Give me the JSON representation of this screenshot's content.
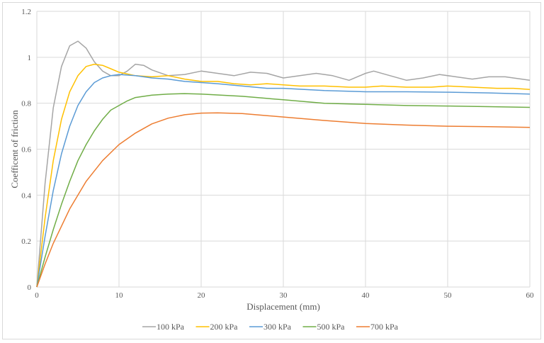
{
  "chart_data": {
    "type": "line",
    "title": "",
    "xlabel": "Displacement (mm)",
    "ylabel": "Coefficent of friction",
    "xlim": [
      0,
      60
    ],
    "ylim": [
      0,
      1.2
    ],
    "xticks": [
      0,
      10,
      20,
      30,
      40,
      50,
      60
    ],
    "yticks": [
      0,
      0.2,
      0.4,
      0.6,
      0.8,
      1,
      1.2
    ],
    "ytick_labels": [
      "0",
      "0.2",
      "0.4",
      "0.6",
      "0.8",
      "1",
      "1.2"
    ],
    "grid": true,
    "legend_position": "bottom",
    "series": [
      {
        "name": "100 kPa",
        "color": "#a5a5a5",
        "points": [
          [
            0,
            0
          ],
          [
            1,
            0.45
          ],
          [
            2,
            0.78
          ],
          [
            3,
            0.96
          ],
          [
            4,
            1.05
          ],
          [
            5,
            1.07
          ],
          [
            6,
            1.04
          ],
          [
            7,
            0.98
          ],
          [
            8,
            0.94
          ],
          [
            9,
            0.92
          ],
          [
            10,
            0.92
          ],
          [
            11,
            0.94
          ],
          [
            12,
            0.97
          ],
          [
            13,
            0.965
          ],
          [
            14,
            0.945
          ],
          [
            16,
            0.92
          ],
          [
            18,
            0.925
          ],
          [
            20,
            0.94
          ],
          [
            22,
            0.93
          ],
          [
            24,
            0.92
          ],
          [
            26,
            0.935
          ],
          [
            28,
            0.93
          ],
          [
            30,
            0.91
          ],
          [
            32,
            0.92
          ],
          [
            34,
            0.93
          ],
          [
            36,
            0.92
          ],
          [
            38,
            0.9
          ],
          [
            40,
            0.93
          ],
          [
            41,
            0.94
          ],
          [
            43,
            0.92
          ],
          [
            45,
            0.9
          ],
          [
            47,
            0.91
          ],
          [
            49,
            0.925
          ],
          [
            51,
            0.915
          ],
          [
            53,
            0.905
          ],
          [
            55,
            0.915
          ],
          [
            57,
            0.915
          ],
          [
            59,
            0.905
          ],
          [
            60,
            0.9
          ]
        ]
      },
      {
        "name": "200 kPa",
        "color": "#ffc000",
        "points": [
          [
            0,
            0
          ],
          [
            1,
            0.3
          ],
          [
            2,
            0.55
          ],
          [
            3,
            0.73
          ],
          [
            4,
            0.85
          ],
          [
            5,
            0.92
          ],
          [
            6,
            0.96
          ],
          [
            7,
            0.97
          ],
          [
            8,
            0.965
          ],
          [
            9,
            0.95
          ],
          [
            10,
            0.935
          ],
          [
            12,
            0.92
          ],
          [
            14,
            0.915
          ],
          [
            16,
            0.92
          ],
          [
            18,
            0.905
          ],
          [
            20,
            0.895
          ],
          [
            22,
            0.895
          ],
          [
            24,
            0.885
          ],
          [
            26,
            0.88
          ],
          [
            28,
            0.885
          ],
          [
            30,
            0.88
          ],
          [
            32,
            0.875
          ],
          [
            35,
            0.875
          ],
          [
            38,
            0.87
          ],
          [
            40,
            0.87
          ],
          [
            42,
            0.875
          ],
          [
            45,
            0.87
          ],
          [
            48,
            0.87
          ],
          [
            50,
            0.875
          ],
          [
            53,
            0.87
          ],
          [
            56,
            0.865
          ],
          [
            58,
            0.865
          ],
          [
            60,
            0.86
          ]
        ]
      },
      {
        "name": "300 kPa",
        "color": "#5b9bd5",
        "points": [
          [
            0,
            0
          ],
          [
            1,
            0.22
          ],
          [
            2,
            0.42
          ],
          [
            3,
            0.58
          ],
          [
            4,
            0.7
          ],
          [
            5,
            0.79
          ],
          [
            6,
            0.85
          ],
          [
            7,
            0.89
          ],
          [
            8,
            0.91
          ],
          [
            9,
            0.92
          ],
          [
            10,
            0.925
          ],
          [
            12,
            0.92
          ],
          [
            14,
            0.91
          ],
          [
            16,
            0.905
          ],
          [
            18,
            0.895
          ],
          [
            20,
            0.89
          ],
          [
            22,
            0.885
          ],
          [
            25,
            0.875
          ],
          [
            28,
            0.865
          ],
          [
            30,
            0.865
          ],
          [
            35,
            0.855
          ],
          [
            40,
            0.85
          ],
          [
            45,
            0.85
          ],
          [
            50,
            0.848
          ],
          [
            55,
            0.845
          ],
          [
            60,
            0.84
          ]
        ]
      },
      {
        "name": "500 kPa",
        "color": "#70ad47",
        "points": [
          [
            0,
            0
          ],
          [
            1,
            0.13
          ],
          [
            2,
            0.25
          ],
          [
            3,
            0.36
          ],
          [
            4,
            0.46
          ],
          [
            5,
            0.55
          ],
          [
            6,
            0.62
          ],
          [
            7,
            0.68
          ],
          [
            8,
            0.73
          ],
          [
            9,
            0.77
          ],
          [
            10,
            0.79
          ],
          [
            11,
            0.81
          ],
          [
            12,
            0.825
          ],
          [
            14,
            0.835
          ],
          [
            16,
            0.84
          ],
          [
            18,
            0.842
          ],
          [
            20,
            0.84
          ],
          [
            25,
            0.83
          ],
          [
            30,
            0.815
          ],
          [
            35,
            0.8
          ],
          [
            40,
            0.795
          ],
          [
            45,
            0.79
          ],
          [
            50,
            0.788
          ],
          [
            55,
            0.785
          ],
          [
            60,
            0.782
          ]
        ]
      },
      {
        "name": "700 kPa",
        "color": "#ed7d31",
        "points": [
          [
            0,
            0
          ],
          [
            1,
            0.1
          ],
          [
            2,
            0.19
          ],
          [
            4,
            0.34
          ],
          [
            6,
            0.46
          ],
          [
            8,
            0.55
          ],
          [
            10,
            0.62
          ],
          [
            12,
            0.67
          ],
          [
            14,
            0.71
          ],
          [
            16,
            0.735
          ],
          [
            18,
            0.75
          ],
          [
            20,
            0.757
          ],
          [
            22,
            0.758
          ],
          [
            25,
            0.755
          ],
          [
            30,
            0.74
          ],
          [
            35,
            0.725
          ],
          [
            40,
            0.712
          ],
          [
            45,
            0.705
          ],
          [
            50,
            0.7
          ],
          [
            55,
            0.698
          ],
          [
            60,
            0.695
          ]
        ]
      }
    ]
  }
}
